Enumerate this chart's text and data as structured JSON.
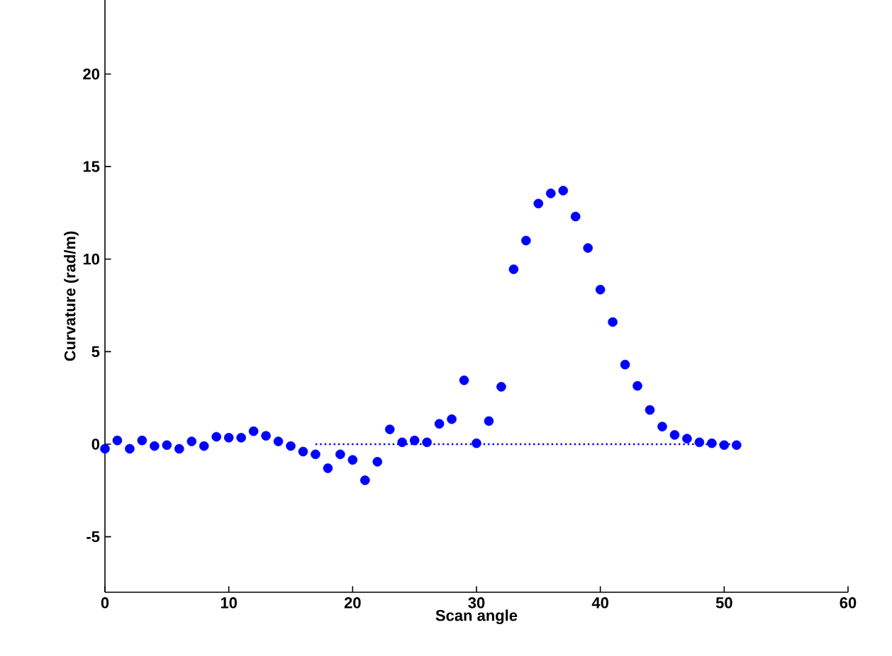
{
  "chart_data": {
    "type": "scatter",
    "xlabel": "Scan angle",
    "ylabel": "Curvature (rad/m)",
    "xlim": [
      0,
      60
    ],
    "ylim": [
      -8,
      24
    ],
    "xticks": [
      0,
      10,
      20,
      30,
      40,
      50,
      60
    ],
    "yticks": [
      -5,
      0,
      5,
      10,
      15,
      20
    ],
    "marker": "circle",
    "series": [
      {
        "color": "#0000ff",
        "x": [
          0,
          1,
          2,
          3,
          4,
          5,
          6,
          7,
          8,
          9,
          10,
          11,
          12,
          13,
          14,
          15,
          16,
          17,
          18,
          19,
          20,
          21,
          22,
          23,
          24,
          25,
          26,
          27,
          28,
          29,
          30,
          31,
          32,
          33,
          34,
          35,
          36,
          37,
          38,
          39,
          40,
          41,
          42,
          43,
          44,
          45,
          46,
          47,
          48,
          49,
          50,
          51
        ],
        "values": [
          -0.25,
          0.2,
          -0.25,
          0.2,
          -0.1,
          -0.05,
          -0.25,
          0.15,
          -0.1,
          0.4,
          0.35,
          0.35,
          0.7,
          0.45,
          0.15,
          -0.1,
          -0.4,
          -0.55,
          -1.3,
          -0.55,
          -0.85,
          -1.95,
          -0.95,
          0.8,
          0.1,
          0.2,
          0.1,
          1.1,
          1.35,
          3.45,
          0.05,
          1.25,
          3.1,
          9.45,
          11.0,
          13.0,
          13.55,
          13.7,
          12.3,
          10.6,
          8.35,
          6.6,
          4.3,
          3.15,
          1.85,
          0.95,
          0.5,
          0.3,
          0.1,
          0.05,
          -0.05,
          -0.05
        ]
      },
      {
        "type": "line",
        "color": "#0000ff",
        "line_style": "dotted",
        "marker": "none",
        "x": [
          17,
          51
        ],
        "values": [
          0,
          0
        ]
      }
    ]
  }
}
